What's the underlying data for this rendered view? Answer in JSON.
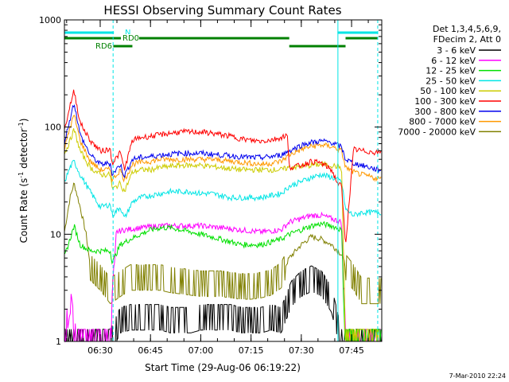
{
  "chart_data": {
    "type": "line",
    "title": "HESSI Observing Summary Count Rates",
    "xlabel": "Start Time (29-Aug-06 06:19:22)",
    "ylabel_main": "Count Rate (s",
    "ylabel_sup1": "-1",
    "ylabel_mid": " detector",
    "ylabel_sup2": "-1",
    "ylabel_end": ")",
    "yscale": "log",
    "ylim": [
      1,
      1000
    ],
    "xlim": [
      6.322,
      7.9
    ],
    "xticks": [
      {
        "x": 6.5,
        "label": "06:30"
      },
      {
        "x": 6.75,
        "label": "06:45"
      },
      {
        "x": 7.0,
        "label": "07:00"
      },
      {
        "x": 7.25,
        "label": "07:15"
      },
      {
        "x": 7.5,
        "label": "07:30"
      },
      {
        "x": 7.75,
        "label": "07:45"
      }
    ],
    "yticks": [
      {
        "y": 1,
        "label": "1"
      },
      {
        "y": 10,
        "label": "10"
      },
      {
        "y": 100,
        "label": "100"
      },
      {
        "y": 1000,
        "label": "1000"
      }
    ],
    "legend_position": "right",
    "legend_header": [
      "Det 1,3,4,5,6,9,",
      "FDecim 2, Att 0"
    ],
    "timestamp": "7-Mar-2010 22:24",
    "vlines": [
      6.322,
      6.564,
      7.682,
      7.88
    ],
    "vline_color": "#00e5e5",
    "flag_bars": [
      {
        "label": "",
        "color": "#00e5e5",
        "segments": [
          [
            6.322,
            6.568
          ],
          [
            7.68,
            7.88
          ]
        ],
        "level": 0
      },
      {
        "label": "N",
        "color": "#00e5e5",
        "segments": [],
        "level": 0
      },
      {
        "label": "RD0",
        "color": "#008000",
        "segments": [
          [
            6.322,
            7.44
          ],
          [
            7.72,
            7.88
          ]
        ],
        "level": 1
      },
      {
        "label": "RD6",
        "color": "#008000",
        "segments": [
          [
            6.565,
            6.66
          ],
          [
            7.44,
            7.72
          ]
        ],
        "level": 2
      }
    ],
    "series": [
      {
        "name": "3 - 6 keV",
        "color": "#000000",
        "x": [
          6.32,
          6.35,
          6.4,
          6.45,
          6.5,
          6.55,
          6.6,
          6.65,
          6.7,
          6.75,
          6.8,
          6.85,
          6.9,
          6.95,
          7.0,
          7.05,
          7.1,
          7.15,
          7.2,
          7.25,
          7.3,
          7.35,
          7.4,
          7.45,
          7.5,
          7.55,
          7.6,
          7.65,
          7.7,
          7.75,
          7.8,
          7.85,
          7.88
        ],
        "y": [
          1,
          1,
          1,
          1,
          1,
          1,
          1.6,
          1.7,
          1.7,
          1.7,
          1.7,
          1.6,
          1.6,
          1.6,
          1.7,
          1.7,
          1.7,
          1.7,
          1.6,
          1.6,
          1.6,
          1.7,
          1.6,
          2.8,
          3.5,
          3.9,
          3.5,
          2.5,
          1,
          1,
          1,
          1,
          1
        ]
      },
      {
        "name": "6 - 12 keV",
        "color": "#ff00ff",
        "x": [
          6.32,
          6.35,
          6.38,
          6.4,
          6.45,
          6.5,
          6.55,
          6.58,
          6.62,
          6.7,
          6.8,
          6.9,
          7.0,
          7.1,
          7.2,
          7.3,
          7.4,
          7.44,
          7.5,
          7.55,
          7.6,
          7.65,
          7.7,
          7.72,
          7.8,
          7.88
        ],
        "y": [
          1,
          2.5,
          1,
          1,
          1,
          1,
          1,
          10.5,
          11,
          11.5,
          12,
          12,
          12,
          11.5,
          11,
          10.5,
          11,
          13,
          14,
          15,
          15,
          14,
          13,
          1,
          1,
          1
        ]
      },
      {
        "name": "12 - 25 keV",
        "color": "#00e000",
        "x": [
          6.32,
          6.35,
          6.37,
          6.4,
          6.45,
          6.5,
          6.55,
          6.56,
          6.6,
          6.65,
          6.7,
          6.75,
          6.8,
          6.85,
          6.9,
          6.95,
          7.0,
          7.05,
          7.1,
          7.15,
          7.2,
          7.25,
          7.3,
          7.35,
          7.4,
          7.44,
          7.5,
          7.55,
          7.6,
          7.65,
          7.7,
          7.72,
          7.8,
          7.88
        ],
        "y": [
          6,
          9,
          12,
          8,
          7,
          7,
          7,
          5.5,
          8,
          9,
          10,
          11,
          11.5,
          11.5,
          11,
          10.5,
          10,
          9.5,
          9,
          8.5,
          8,
          8,
          8,
          8.5,
          9,
          10,
          11,
          12,
          12.5,
          12,
          11,
          1,
          1,
          1
        ]
      },
      {
        "name": "25 - 50 keV",
        "color": "#00e5e5",
        "x": [
          6.32,
          6.35,
          6.37,
          6.4,
          6.45,
          6.5,
          6.55,
          6.56,
          6.6,
          6.62,
          6.66,
          6.7,
          6.75,
          6.8,
          6.85,
          6.9,
          6.95,
          7.0,
          7.05,
          7.1,
          7.15,
          7.2,
          7.25,
          7.3,
          7.35,
          7.4,
          7.44,
          7.5,
          7.55,
          7.6,
          7.65,
          7.7,
          7.72,
          7.76,
          7.8,
          7.88
        ],
        "y": [
          30,
          42,
          48,
          36,
          25,
          18,
          19,
          15,
          18,
          14,
          20,
          22,
          23,
          24,
          25,
          25,
          25,
          24,
          24,
          23,
          22,
          22,
          22,
          22,
          23,
          24,
          28,
          31,
          34,
          36,
          34,
          31,
          17,
          15,
          16,
          16
        ]
      },
      {
        "name": "50 - 100 keV",
        "color": "#cccc00",
        "x": [
          6.32,
          6.35,
          6.37,
          6.4,
          6.45,
          6.5,
          6.55,
          6.56,
          6.6,
          6.62,
          6.66,
          6.7,
          6.75,
          6.8,
          6.85,
          6.9,
          6.95,
          7.0,
          7.05,
          7.1,
          7.15,
          7.2,
          7.25,
          7.3,
          7.35,
          7.4,
          7.44,
          7.5,
          7.55,
          7.6,
          7.65,
          7.7,
          7.72,
          7.8,
          7.88
        ],
        "y": [
          55,
          75,
          95,
          60,
          42,
          36,
          36,
          26,
          30,
          25,
          38,
          40,
          40,
          42,
          43,
          44,
          44,
          44,
          43,
          42,
          41,
          40,
          40,
          40,
          40,
          40,
          42,
          43,
          44,
          45,
          44,
          42,
          1,
          1,
          1
        ]
      },
      {
        "name": "100 - 300 keV",
        "color": "#ff0000",
        "x": [
          6.32,
          6.35,
          6.37,
          6.4,
          6.45,
          6.5,
          6.55,
          6.56,
          6.6,
          6.62,
          6.66,
          6.7,
          6.75,
          6.8,
          6.85,
          6.9,
          6.95,
          7.0,
          7.05,
          7.1,
          7.15,
          7.2,
          7.25,
          7.3,
          7.35,
          7.4,
          7.43,
          7.44,
          7.5,
          7.55,
          7.6,
          7.65,
          7.68,
          7.7,
          7.72,
          7.76,
          7.8,
          7.88
        ],
        "y": [
          90,
          160,
          220,
          110,
          75,
          60,
          62,
          46,
          58,
          40,
          75,
          80,
          82,
          85,
          88,
          90,
          90,
          90,
          88,
          85,
          82,
          78,
          75,
          74,
          76,
          80,
          85,
          42,
          44,
          48,
          46,
          40,
          30,
          28,
          8,
          62,
          60,
          58
        ]
      },
      {
        "name": "300 - 800 keV",
        "color": "#0000ee",
        "x": [
          6.32,
          6.35,
          6.37,
          6.4,
          6.45,
          6.5,
          6.55,
          6.56,
          6.6,
          6.62,
          6.66,
          6.7,
          6.75,
          6.8,
          6.85,
          6.9,
          6.95,
          7.0,
          7.05,
          7.1,
          7.15,
          7.2,
          7.25,
          7.3,
          7.35,
          7.4,
          7.44,
          7.5,
          7.55,
          7.6,
          7.65,
          7.7,
          7.72,
          7.76,
          7.8,
          7.88
        ],
        "y": [
          70,
          120,
          170,
          85,
          55,
          45,
          46,
          36,
          45,
          35,
          50,
          52,
          53,
          55,
          56,
          57,
          57,
          57,
          56,
          55,
          54,
          53,
          52,
          52,
          53,
          55,
          60,
          68,
          72,
          74,
          72,
          65,
          50,
          46,
          44,
          40
        ]
      },
      {
        "name": "800 - 7000 keV",
        "color": "#ff9900",
        "x": [
          6.32,
          6.35,
          6.37,
          6.4,
          6.45,
          6.5,
          6.55,
          6.56,
          6.6,
          6.62,
          6.66,
          6.7,
          6.75,
          6.8,
          6.85,
          6.9,
          6.95,
          7.0,
          7.05,
          7.1,
          7.15,
          7.2,
          7.25,
          7.3,
          7.35,
          7.4,
          7.44,
          7.5,
          7.55,
          7.6,
          7.65,
          7.7,
          7.72,
          7.76,
          7.8,
          7.88
        ],
        "y": [
          60,
          100,
          130,
          75,
          48,
          40,
          40,
          32,
          40,
          32,
          45,
          47,
          48,
          50,
          50,
          50,
          50,
          50,
          50,
          49,
          48,
          47,
          46,
          45,
          46,
          48,
          55,
          62,
          66,
          68,
          66,
          60,
          42,
          38,
          36,
          33
        ]
      },
      {
        "name": "7000 - 20000 keV",
        "color": "#808000",
        "x": [
          6.32,
          6.35,
          6.37,
          6.4,
          6.43,
          6.45,
          6.5,
          6.55,
          6.6,
          6.65,
          6.7,
          6.75,
          6.8,
          6.85,
          6.9,
          6.95,
          7.0,
          7.05,
          7.1,
          7.15,
          7.2,
          7.25,
          7.3,
          7.35,
          7.4,
          7.44,
          7.5,
          7.55,
          7.6,
          7.65,
          7.7,
          7.72,
          7.76,
          7.8,
          7.88
        ],
        "y": [
          10,
          22,
          30,
          18,
          10,
          5,
          4,
          3,
          3.5,
          4,
          4,
          4,
          4,
          3.8,
          3.7,
          3.6,
          3.5,
          3.5,
          3.5,
          3.4,
          3.3,
          3.3,
          3.4,
          3.6,
          4.2,
          6,
          8,
          9.5,
          9,
          8,
          6.5,
          5,
          4,
          3,
          3
        ]
      }
    ]
  }
}
